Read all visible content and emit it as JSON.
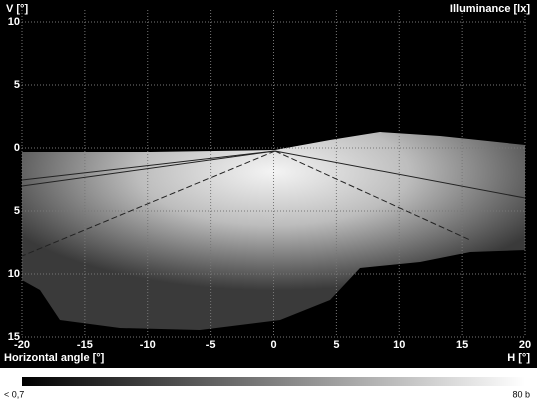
{
  "chart_data": {
    "type": "heatmap",
    "y_label": "V [°]",
    "color_label": "Illuminance [lx]",
    "x_label": "Horizontal angle [°]",
    "x_unit_label": "H [°]",
    "xlim": [
      -20,
      20
    ],
    "xticks": [
      -20,
      -15,
      -10,
      -5,
      0,
      5,
      10,
      15,
      20
    ],
    "ylim": [
      -15,
      10
    ],
    "yticks": [
      10,
      5,
      0,
      {
        "value": -5,
        "label": "5"
      },
      {
        "value": -10,
        "label": "10"
      },
      {
        "value": -15,
        "label": "15"
      }
    ],
    "grid": true,
    "colorbar_min_label": "< 0,7",
    "colorbar_max_label": "80 b"
  }
}
